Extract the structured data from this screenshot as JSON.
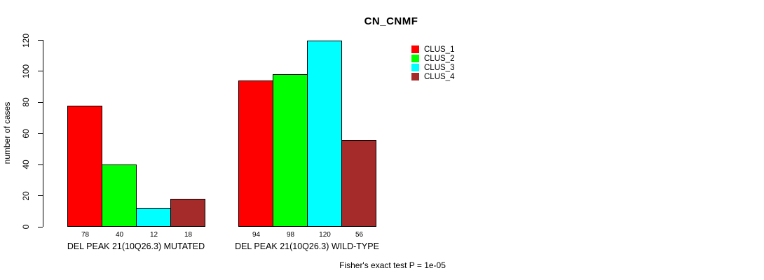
{
  "title": "CN_CNMF",
  "footnote": "Fisher's exact test P = 1e-05",
  "y_axis": {
    "label": "number of cases",
    "ticks": [
      0,
      20,
      40,
      60,
      80,
      100,
      120
    ]
  },
  "legend": {
    "position": "top-right",
    "items": [
      {
        "label": "CLUS_1",
        "color": "#FF0000"
      },
      {
        "label": "CLUS_2",
        "color": "#00FF00"
      },
      {
        "label": "CLUS_3",
        "color": "#00FFFF"
      },
      {
        "label": "CLUS_4",
        "color": "#A52A2A"
      }
    ]
  },
  "chart_data": {
    "type": "bar",
    "title": "CN_CNMF",
    "xlabel": "",
    "ylabel": "number of cases",
    "ylim": [
      0,
      120
    ],
    "yticks": [
      0,
      20,
      40,
      60,
      80,
      100,
      120
    ],
    "grid": false,
    "legend_position": "top-right",
    "categories": [
      "DEL PEAK 21(10Q26.3) MUTATED",
      "DEL PEAK 21(10Q26.3) WILD-TYPE"
    ],
    "series": [
      {
        "name": "CLUS_1",
        "color": "#FF0000",
        "values": [
          78,
          94
        ]
      },
      {
        "name": "CLUS_2",
        "color": "#00FF00",
        "values": [
          40,
          98
        ]
      },
      {
        "name": "CLUS_3",
        "color": "#00FFFF",
        "values": [
          12,
          120
        ]
      },
      {
        "name": "CLUS_4",
        "color": "#A52A2A",
        "values": [
          18,
          56
        ]
      }
    ],
    "bar_value_labels": [
      [
        78,
        40,
        12,
        18
      ],
      [
        94,
        98,
        120,
        56
      ]
    ],
    "annotation": "Fisher's exact test P = 1e-05"
  }
}
